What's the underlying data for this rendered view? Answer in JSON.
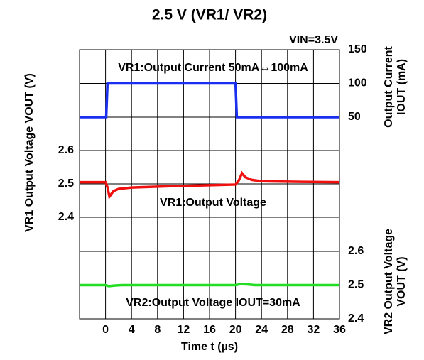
{
  "title": "2.5 V (VR1/ VR2)",
  "subtitle": "VIN=3.5V",
  "chart_data": [
    {
      "type": "line",
      "annotation": "VR1:Output Current 50mA↔100mA",
      "y_label": [
        "Output Current",
        "IOUT (mA)"
      ],
      "yaxis_side": "right",
      "xlim": [
        -4,
        36
      ],
      "ylim": [
        50,
        150
      ],
      "yticks": [
        50,
        100,
        150
      ],
      "grid": true,
      "series": [
        {
          "name": "VR1:Output Current",
          "color": "#1a2ff0",
          "x": [
            -4,
            0.1,
            0.3,
            20.0,
            20.2,
            36
          ],
          "values": [
            50,
            50,
            100,
            100,
            50,
            50
          ]
        }
      ]
    },
    {
      "type": "line",
      "annotation": "VR1:Output Voltage",
      "y_label": [
        "VR1 Output Voltage VOUT (V)"
      ],
      "yaxis_side": "left",
      "xlim": [
        -4,
        36
      ],
      "ylim": [
        2.4,
        2.6
      ],
      "yticks": [
        2.4,
        2.5,
        2.6
      ],
      "grid": true,
      "series": [
        {
          "name": "VR1:Output Voltage",
          "color": "#f01010",
          "x": [
            -4,
            0,
            0.3,
            0.6,
            1.2,
            2,
            4,
            10,
            16,
            20,
            20.5,
            21,
            21.5,
            22.5,
            24,
            30,
            36
          ],
          "values": [
            2.505,
            2.505,
            2.49,
            2.462,
            2.478,
            2.485,
            2.489,
            2.493,
            2.496,
            2.498,
            2.51,
            2.532,
            2.52,
            2.512,
            2.508,
            2.506,
            2.505
          ]
        }
      ]
    },
    {
      "type": "line",
      "annotation": "VR2:Output Voltage IOUT=30mA",
      "y_label": [
        "VR2 Output Voltage",
        "VOUT (V)"
      ],
      "yaxis_side": "right",
      "xlim": [
        -4,
        36
      ],
      "ylim": [
        2.4,
        2.6
      ],
      "yticks": [
        2.4,
        2.5,
        2.6
      ],
      "grid": true,
      "x_label": "Time t (µs)",
      "xticks": [
        0,
        4,
        8,
        12,
        16,
        20,
        24,
        28,
        32,
        36
      ],
      "series": [
        {
          "name": "VR2:Output Voltage",
          "color": "#22dd22",
          "x": [
            -4,
            0,
            0.5,
            1.5,
            2.5,
            20,
            20.8,
            21.8,
            23,
            36
          ],
          "values": [
            2.5,
            2.5,
            2.497,
            2.499,
            2.5,
            2.5,
            2.503,
            2.502,
            2.5,
            2.5
          ]
        }
      ]
    }
  ]
}
